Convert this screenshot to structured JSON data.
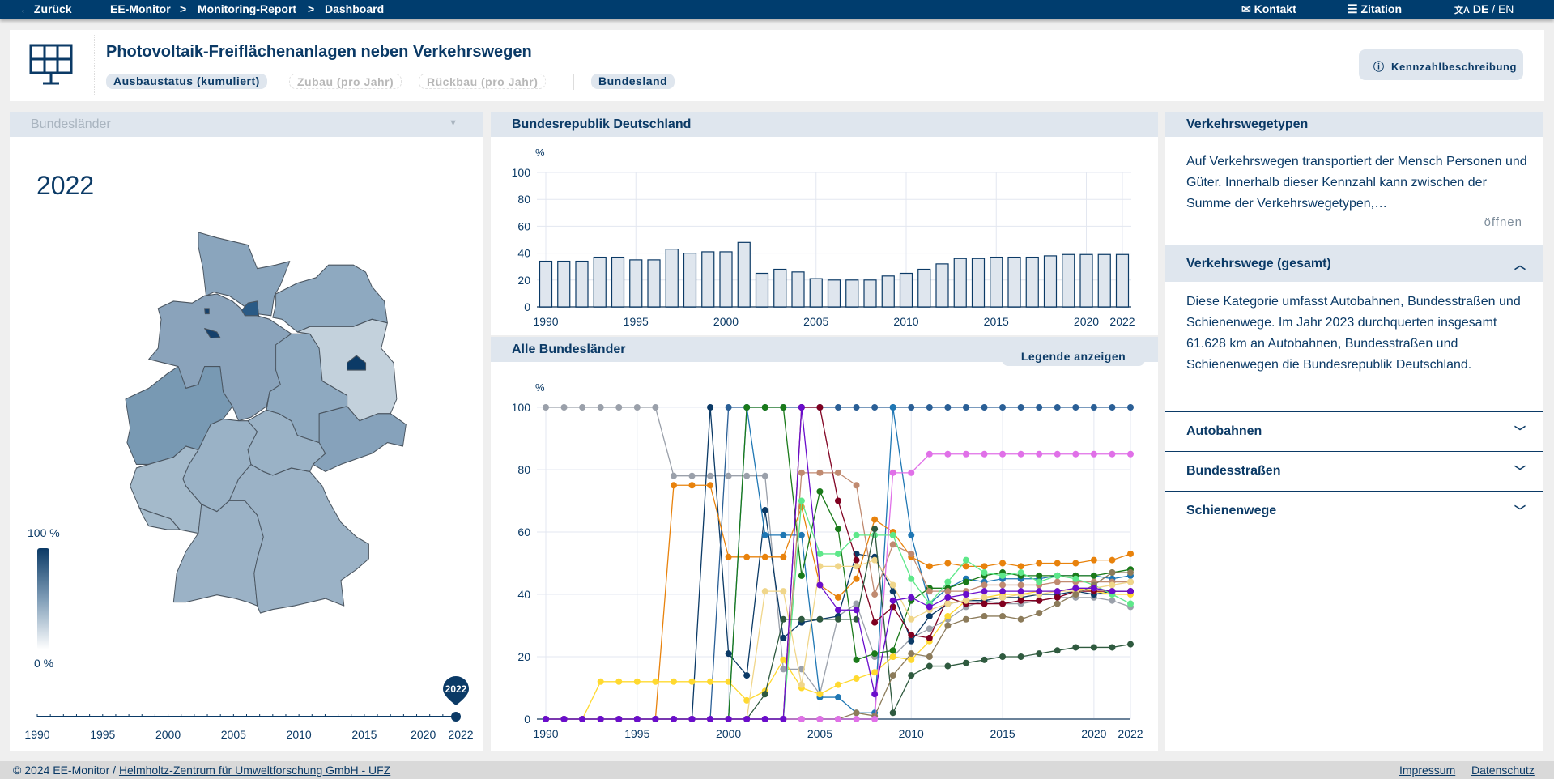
{
  "topbar": {
    "back": "Zurück",
    "breadcrumb": [
      "EE-Monitor",
      "Monitoring-Report",
      "Dashboard"
    ],
    "sep": ">",
    "contact": "Kontakt",
    "citation": "Zitation",
    "lang_de": "DE",
    "lang_sep": "/",
    "lang_en": "EN"
  },
  "header": {
    "title": "Photovoltaik-Freiflächenanlagen neben Verkehrswegen",
    "chips": [
      {
        "label": "Ausbaustatus (kumuliert)",
        "active": true
      },
      {
        "label": "Zubau (pro Jahr)",
        "active": false
      },
      {
        "label": "Rückbau (pro Jahr)",
        "active": false
      },
      {
        "label": "Bundesland",
        "active": true
      }
    ],
    "info_button": "Kennzahlbeschreibung"
  },
  "map_panel": {
    "dropdown": "Bundesländer",
    "year": "2022",
    "legend_max": "100 %",
    "legend_min": "0 %",
    "timeline_labels": [
      "1990",
      "1995",
      "2000",
      "2005",
      "2010",
      "2015",
      "2020",
      "2022"
    ],
    "selected_year": "2022",
    "accent": "#0b3a66"
  },
  "bar_panel": {
    "title": "Bundesrepublik Deutschland"
  },
  "line_panel": {
    "title": "Alle Bundesländer",
    "legend_button": "Legende anzeigen"
  },
  "chart_data": [
    {
      "type": "bar",
      "ylabel": "%",
      "ylim": [
        0,
        100
      ],
      "yticks": [
        "0",
        "20",
        "40",
        "60",
        "80",
        "100"
      ],
      "xticks": [
        "1990",
        "1995",
        "2000",
        "2005",
        "2010",
        "2015",
        "2020",
        "2022"
      ],
      "x_start": 1990,
      "values": [
        34,
        34,
        34,
        37,
        37,
        35,
        35,
        43,
        40,
        41,
        41,
        48,
        25,
        28,
        26,
        21,
        20,
        20,
        20,
        23,
        25,
        28,
        32,
        36,
        36,
        37,
        37,
        37,
        38,
        39,
        39,
        39,
        39
      ],
      "bar_color": "#dfe6ee",
      "bar_edge": "#0b3a66"
    },
    {
      "type": "line",
      "ylabel": "%",
      "ylim": [
        0,
        100
      ],
      "yticks": [
        "0",
        "20",
        "40",
        "60",
        "80",
        "100"
      ],
      "xticks": [
        "1990",
        "1995",
        "2000",
        "2005",
        "2010",
        "2015",
        "2020",
        "2022"
      ],
      "x_start": 1990,
      "series": [
        {
          "color": "#9aa0aa",
          "values": [
            100,
            100,
            100,
            100,
            100,
            100,
            100,
            78,
            78,
            78,
            78,
            78,
            78,
            16,
            16,
            8,
            33,
            37,
            20,
            20,
            26,
            29,
            32,
            36,
            38,
            37,
            37,
            38,
            39,
            39,
            39,
            38,
            36
          ]
        },
        {
          "color": "#0b3a66",
          "values": [
            0,
            0,
            0,
            0,
            0,
            0,
            0,
            0,
            0,
            100,
            21,
            14,
            67,
            26,
            31,
            32,
            33,
            53,
            52,
            41,
            25,
            33,
            37,
            38,
            38,
            39,
            39,
            40,
            40,
            41,
            40,
            41,
            41
          ]
        },
        {
          "color": "#2a5f96",
          "values": [
            0,
            0,
            0,
            0,
            0,
            0,
            0,
            0,
            0,
            0,
            100,
            100,
            100,
            100,
            100,
            100,
            100,
            100,
            100,
            100,
            100,
            100,
            100,
            100,
            100,
            100,
            100,
            100,
            100,
            100,
            100,
            100,
            100
          ]
        },
        {
          "color": "#1f77b4",
          "values": [
            0,
            0,
            0,
            0,
            0,
            0,
            0,
            0,
            0,
            0,
            0,
            100,
            59,
            59,
            59,
            7,
            7,
            2,
            2,
            100,
            59,
            37,
            42,
            45,
            44,
            45,
            45,
            45,
            46,
            46,
            46,
            45,
            46
          ]
        },
        {
          "color": "#e8820c",
          "values": [
            0,
            0,
            0,
            0,
            0,
            0,
            0,
            75,
            75,
            75,
            52,
            52,
            52,
            52,
            68,
            43,
            39,
            45,
            64,
            60,
            52,
            49,
            50,
            49,
            49,
            50,
            49,
            50,
            50,
            50,
            51,
            51,
            53
          ]
        },
        {
          "color": "#ffd92f",
          "values": [
            0,
            0,
            0,
            12,
            12,
            12,
            12,
            12,
            12,
            12,
            12,
            6,
            9,
            19,
            10,
            8,
            11,
            13,
            15,
            20,
            19,
            25,
            33,
            38,
            39,
            40,
            40,
            41,
            41,
            42,
            41,
            40,
            40
          ]
        },
        {
          "color": "#1a7a1a",
          "values": [
            0,
            0,
            0,
            0,
            0,
            0,
            0,
            0,
            0,
            0,
            0,
            100,
            100,
            100,
            46,
            73,
            61,
            19,
            21,
            22,
            38,
            42,
            42,
            44,
            46,
            47,
            46,
            46,
            46,
            46,
            46,
            47,
            48
          ]
        },
        {
          "color": "#800020",
          "values": [
            0,
            0,
            0,
            0,
            0,
            0,
            0,
            0,
            0,
            0,
            0,
            0,
            0,
            0,
            100,
            100,
            70,
            51,
            31,
            36,
            27,
            26,
            39,
            37,
            37,
            37,
            38,
            38,
            39,
            41,
            41,
            41,
            41
          ]
        },
        {
          "color": "#c08a70",
          "values": [
            0,
            0,
            0,
            0,
            0,
            0,
            0,
            0,
            0,
            0,
            0,
            0,
            0,
            0,
            79,
            79,
            79,
            75,
            40,
            56,
            53,
            41,
            41,
            41,
            43,
            43,
            43,
            43,
            44,
            44,
            44,
            44,
            44
          ]
        },
        {
          "color": "#5ee88a",
          "values": [
            0,
            0,
            0,
            0,
            0,
            0,
            0,
            0,
            0,
            0,
            0,
            0,
            0,
            0,
            70,
            53,
            53,
            59,
            59,
            59,
            45,
            37,
            44,
            51,
            47,
            46,
            47,
            44,
            46,
            45,
            43,
            40,
            37
          ]
        },
        {
          "color": "#f0d68a",
          "values": [
            0,
            0,
            0,
            0,
            0,
            0,
            0,
            0,
            0,
            0,
            0,
            0,
            41,
            41,
            11,
            49,
            49,
            49,
            51,
            43,
            32,
            35,
            37,
            38,
            39,
            39,
            40,
            40,
            41,
            41,
            42,
            43,
            44
          ]
        },
        {
          "color": "#2f5a3f",
          "values": [
            0,
            0,
            0,
            0,
            0,
            0,
            0,
            0,
            0,
            0,
            0,
            0,
            8,
            32,
            32,
            32,
            32,
            32,
            61,
            2,
            14,
            17,
            17,
            18,
            19,
            20,
            20,
            21,
            22,
            23,
            23,
            23,
            24
          ]
        },
        {
          "color": "#8c7b5a",
          "values": [
            0,
            0,
            0,
            0,
            0,
            0,
            0,
            0,
            0,
            0,
            0,
            0,
            0,
            0,
            0,
            0,
            0,
            2,
            1,
            14,
            21,
            20,
            30,
            32,
            33,
            33,
            32,
            34,
            37,
            40,
            43,
            47,
            47
          ]
        },
        {
          "color": "#e070e8",
          "values": [
            0,
            0,
            0,
            0,
            0,
            0,
            0,
            0,
            0,
            0,
            0,
            0,
            0,
            0,
            0,
            0,
            0,
            0,
            0,
            79,
            79,
            85,
            85,
            85,
            85,
            85,
            85,
            85,
            85,
            85,
            85,
            85,
            85
          ]
        },
        {
          "color": "#6a0dcc",
          "values": [
            0,
            0,
            0,
            0,
            0,
            0,
            0,
            0,
            0,
            0,
            0,
            0,
            0,
            0,
            100,
            43,
            35,
            35,
            8,
            38,
            39,
            36,
            39,
            40,
            41,
            41,
            41,
            41,
            41,
            42,
            42,
            41,
            41
          ]
        }
      ]
    }
  ],
  "right_panel": {
    "title": "Verkehrswegetypen",
    "intro": "Auf Verkehrswegen transportiert der Mensch Personen und Güter. Innerhalb dieser Kennzahl kann zwischen der Summe der Verkehrswegetypen,…",
    "open_link": "öffnen",
    "expanded": {
      "title": "Verkehrswege (gesamt)",
      "text": "Diese Kategorie umfasst Autobahnen, Bundesstraßen und Schienenwege. Im Jahr 2023 durchquerten insgesamt 61.628 km an Autobahnen, Bundesstraßen und Schienenwegen die Bundesrepublik Deutschland."
    },
    "items": [
      "Autobahnen",
      "Bundesstraßen",
      "Schienenwege"
    ]
  },
  "footer": {
    "copyright": "© 2024 EE-Monitor / ",
    "org_link": "Helmholtz-Zentrum für Umweltforschung GmbH - UFZ",
    "impressum": "Impressum",
    "datenschutz": "Datenschutz"
  }
}
